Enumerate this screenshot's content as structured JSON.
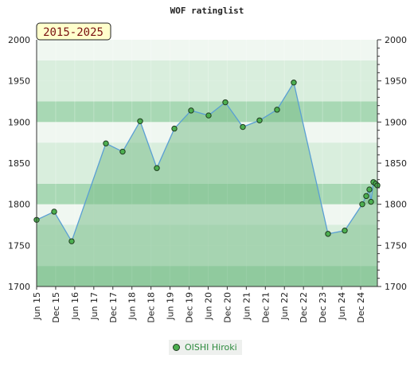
{
  "chart_data": {
    "type": "area",
    "title": "WOF ratinglist",
    "badge": "2015-2025",
    "xlabel": "",
    "ylabel": "",
    "ylim": [
      1700,
      2000
    ],
    "yticks": [
      1700,
      1750,
      1800,
      1850,
      1900,
      1950,
      2000
    ],
    "xticks": [
      "Jun 15",
      "Dec 15",
      "Jun 16",
      "Jun 17",
      "Dec 17",
      "Jun 18",
      "Dec 18",
      "Jun 19",
      "Dec 19",
      "Jun 20",
      "Dec 20",
      "Jun 21",
      "Dec 21",
      "Jun 22",
      "Dec 22",
      "Dec 23",
      "Jun 24",
      "Dec 24"
    ],
    "legend_position": "bottom",
    "series": [
      {
        "name": "OISHI Hiroki",
        "values": [
          1781,
          1791,
          1755,
          1874,
          1864,
          1901,
          1844,
          1892,
          1914,
          1908,
          1924,
          1894,
          1902,
          1915,
          1948,
          1764,
          1768,
          1800,
          1810,
          1818,
          1803,
          1827,
          1825,
          1823
        ]
      }
    ]
  },
  "colors": {
    "line": "#5a9fd4",
    "fill": "#7cc08c",
    "marker": "#4caf50",
    "marker_stroke": "#1e3a1e",
    "band_light": "#f0f7f1",
    "band_mid": "#d9eedd",
    "band_dark": "#a8d8b4",
    "badge_bg": "#ffffcc"
  }
}
